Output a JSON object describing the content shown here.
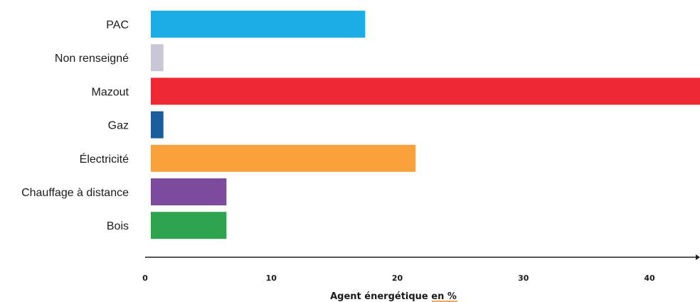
{
  "chart_data": {
    "type": "bar",
    "orientation": "horizontal",
    "categories": [
      "PAC",
      "Non renseigné",
      "Mazout",
      "Gaz",
      "Électricité",
      "Chauffage à distance",
      "Bois"
    ],
    "values": [
      17,
      1,
      44,
      1,
      21,
      6,
      6
    ],
    "colors": [
      "#1cade4",
      "#c9c6d6",
      "#ee2934",
      "#1b5c9e",
      "#f9a23c",
      "#7d4b9e",
      "#2ea44e"
    ],
    "xlabel": "Agent énergétique en %",
    "xlim": [
      0,
      44
    ],
    "xticks": [
      "0",
      "10",
      "20",
      "30",
      "40"
    ],
    "xtick_values": [
      0,
      10,
      20,
      30,
      40
    ],
    "grid": false,
    "axis_color": "#222222"
  }
}
